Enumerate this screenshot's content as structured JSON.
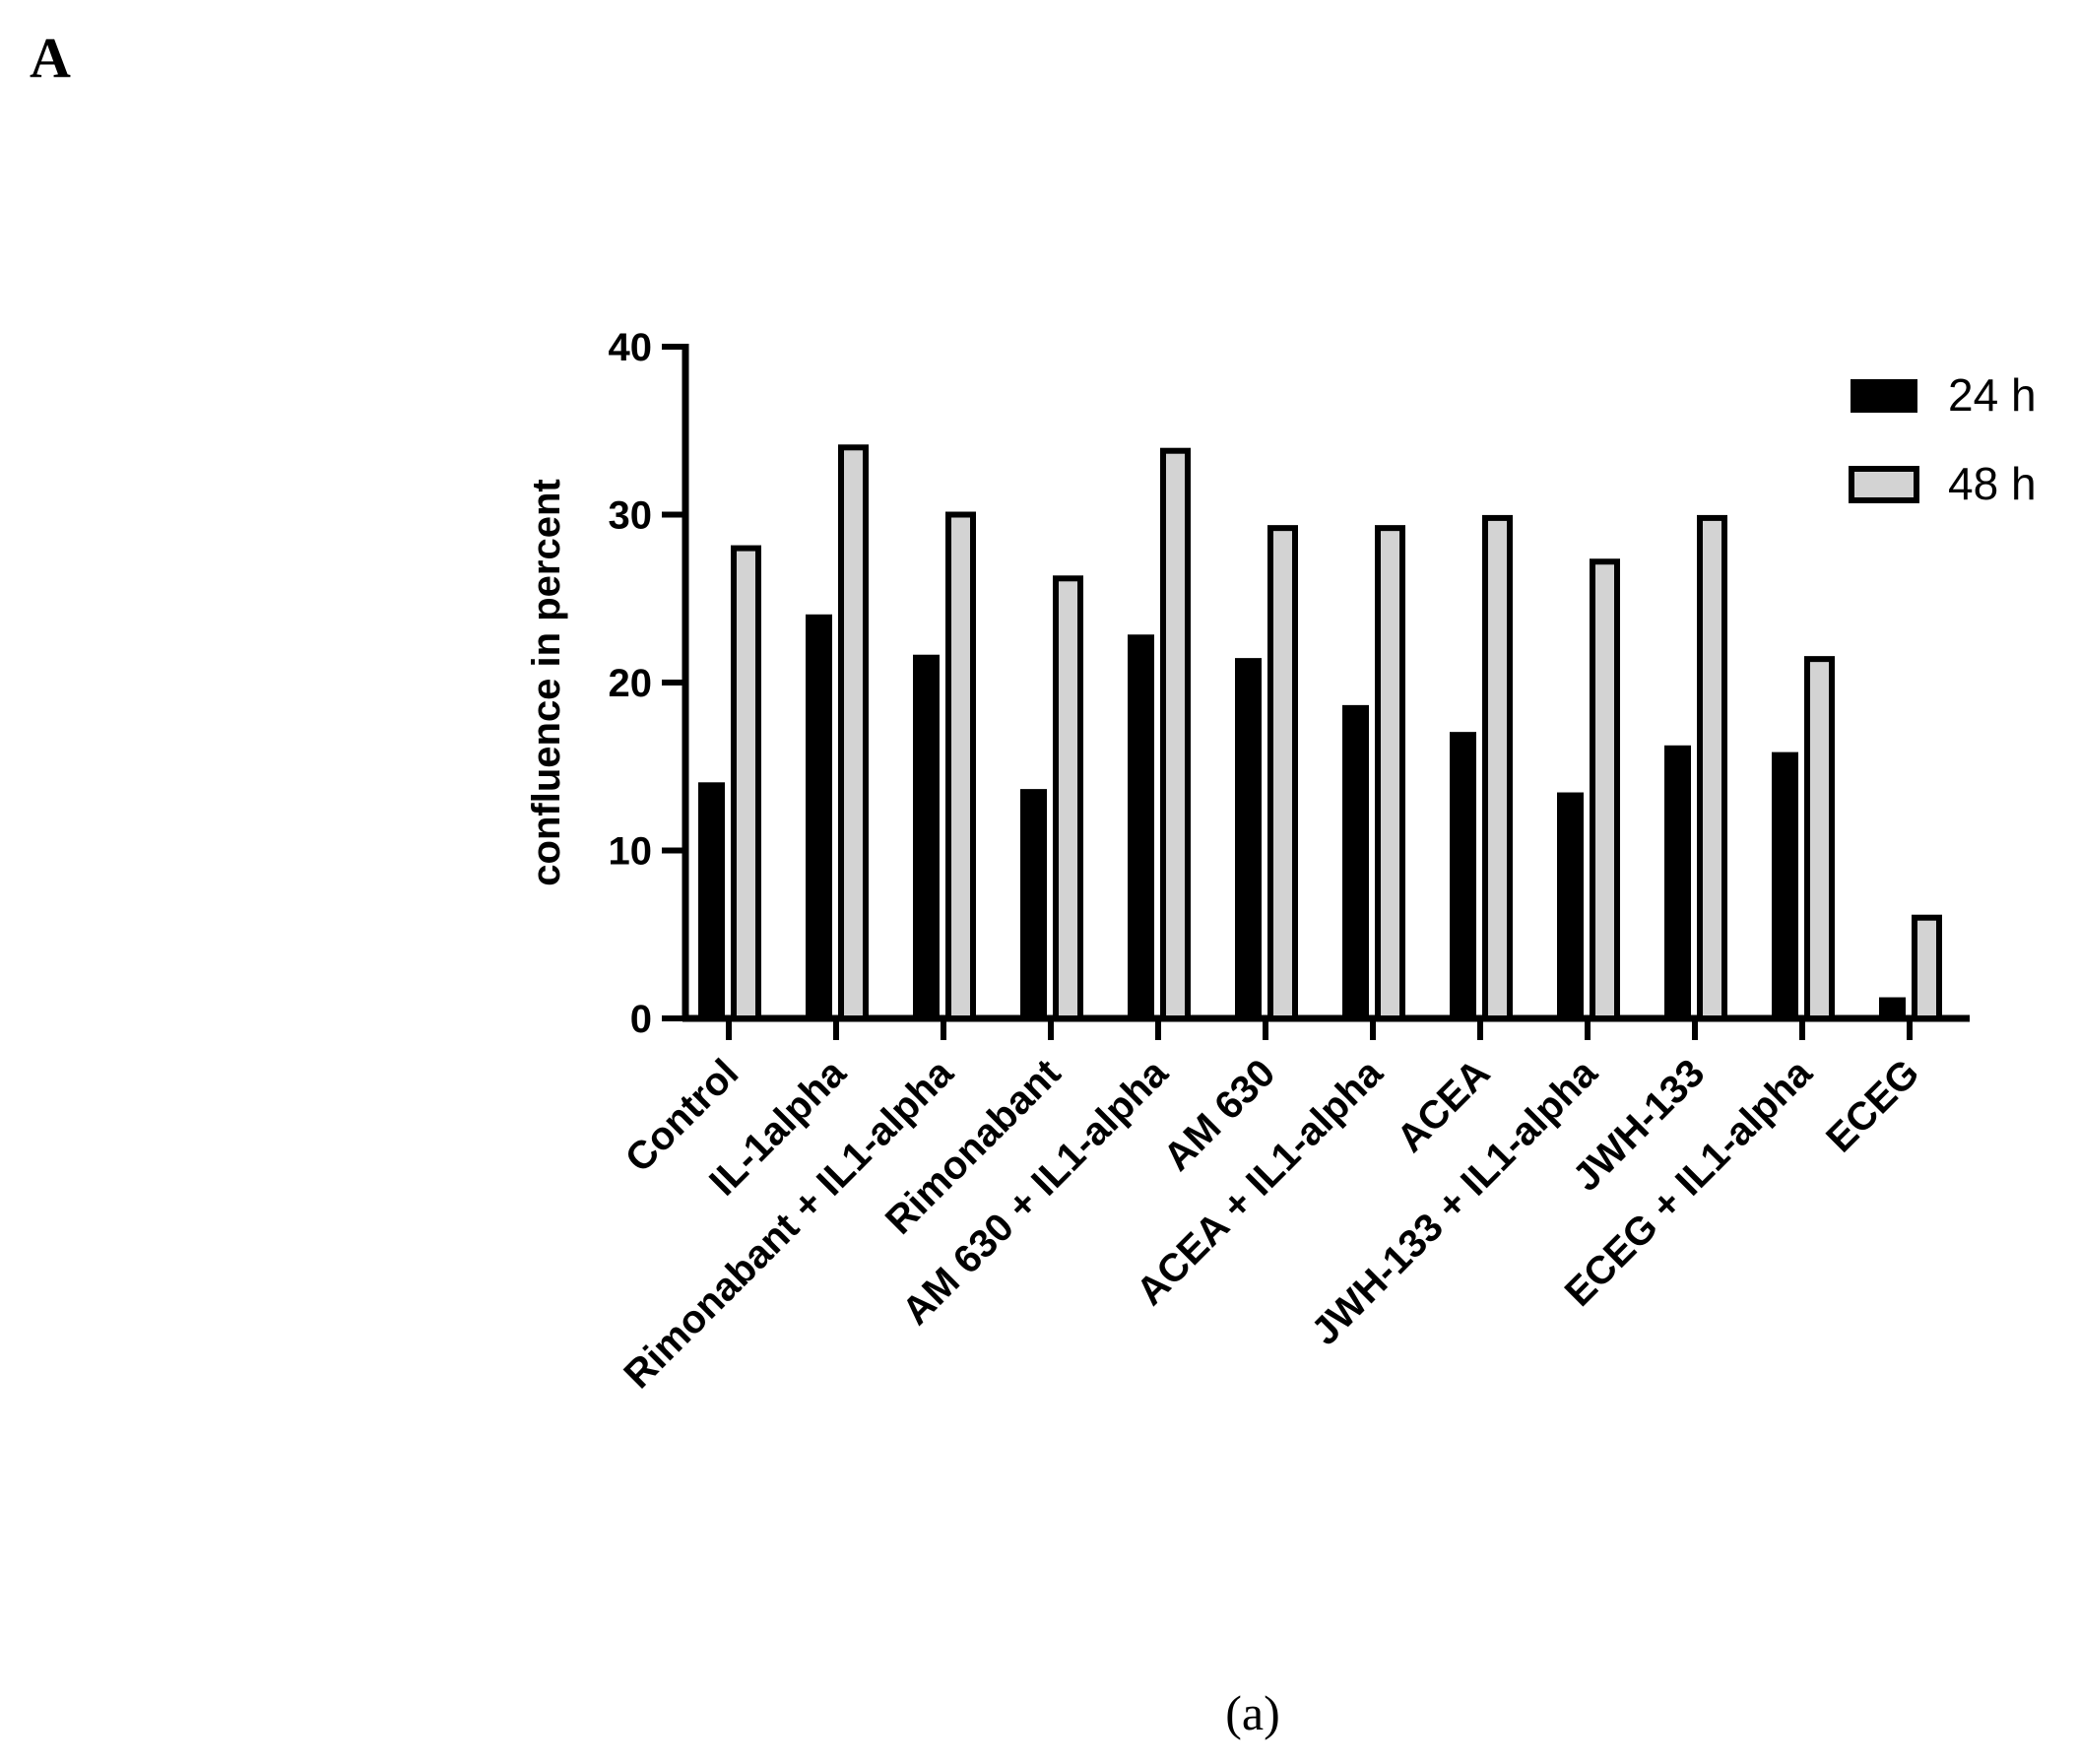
{
  "panel_label": "A",
  "caption": "(a)",
  "chart_data": {
    "type": "bar",
    "title": "",
    "xlabel": "",
    "ylabel": "confluence in percent",
    "ylim": [
      0,
      40
    ],
    "yticks": [
      0,
      10,
      20,
      30,
      40
    ],
    "grid": false,
    "legend_position": "top-right",
    "categories": [
      "Control",
      "IL-1alpha",
      "Rimonabant + IL1-alpha",
      "Rimonabant",
      "AM 630 + IL1-alpha",
      "AM 630",
      "ACEA + IL1-alpha",
      "ACEA",
      "JWH-133 + IL1-alpha",
      "JWH-133",
      "ECEG + IL1-alpha",
      "ECEG"
    ],
    "series": [
      {
        "name": "24 h",
        "color": "#000000",
        "values": [
          14.0,
          24.0,
          21.6,
          13.6,
          22.8,
          21.4,
          18.6,
          17.0,
          13.4,
          16.2,
          15.8,
          1.2
        ]
      },
      {
        "name": "48 h",
        "color": "#d3d3d3",
        "values": [
          28.0,
          34.0,
          30.0,
          26.2,
          33.8,
          29.2,
          29.2,
          29.8,
          27.2,
          29.8,
          21.4,
          6.0
        ]
      }
    ]
  }
}
